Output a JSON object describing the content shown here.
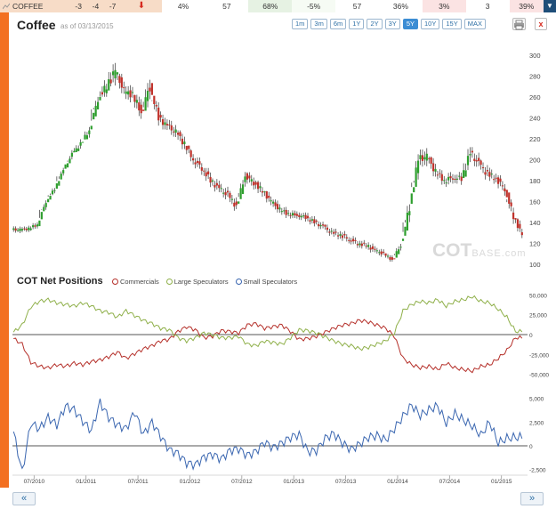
{
  "top_row": {
    "name": "COFFEE",
    "values": [
      "-3",
      "-4",
      "-7"
    ],
    "metrics": [
      "4%",
      "57",
      "68%",
      "-5%",
      "57",
      "36%",
      "3%",
      "3",
      "39%"
    ]
  },
  "header": {
    "title": "Coffee",
    "as_of": "as of 03/13/2015",
    "ranges": [
      "1m",
      "3m",
      "6m",
      "1Y",
      "2Y",
      "3Y",
      "5Y",
      "10Y",
      "15Y",
      "MAX"
    ],
    "active_range": "5Y",
    "close_label": "x"
  },
  "watermark": {
    "main": "COT",
    "sub": "BASE",
    "suffix": ".com"
  },
  "cot": {
    "title": "COT Net Positions",
    "legend": [
      {
        "name": "Commercials",
        "color": "#b5302a"
      },
      {
        "name": "Large Speculators",
        "color": "#8fb04a"
      },
      {
        "name": "Small Speculators",
        "color": "#3a66b0"
      }
    ]
  },
  "nav": {
    "prev": "«",
    "next": "»"
  },
  "chart_data": [
    {
      "type": "candlestick",
      "ylim": [
        100,
        310
      ],
      "yticks": [
        "100",
        "120",
        "140",
        "160",
        "180",
        "200",
        "220",
        "240",
        "260",
        "280",
        "300"
      ],
      "up_color": "#2e9e2e",
      "down_color": "#c0322b",
      "x": [
        "2010-05",
        "2010-06",
        "2010-07",
        "2010-08",
        "2010-09",
        "2010-10",
        "2010-11",
        "2010-12",
        "2011-01",
        "2011-02",
        "2011-03",
        "2011-04",
        "2011-05",
        "2011-06",
        "2011-07",
        "2011-08",
        "2011-09",
        "2011-10",
        "2011-11",
        "2011-12",
        "2012-01",
        "2012-02",
        "2012-03",
        "2012-04",
        "2012-05",
        "2012-06",
        "2012-07",
        "2012-08",
        "2012-09",
        "2012-10",
        "2012-11",
        "2012-12",
        "2013-01",
        "2013-02",
        "2013-03",
        "2013-04",
        "2013-05",
        "2013-06",
        "2013-07",
        "2013-08",
        "2013-09",
        "2013-10",
        "2013-11",
        "2013-12",
        "2014-01",
        "2014-02",
        "2014-03",
        "2014-04",
        "2014-05",
        "2014-06",
        "2014-07",
        "2014-08",
        "2014-09",
        "2014-10",
        "2014-11",
        "2014-12",
        "2015-01",
        "2015-02",
        "2015-03"
      ],
      "close": [
        133,
        134,
        138,
        160,
        172,
        190,
        205,
        215,
        228,
        258,
        270,
        285,
        265,
        262,
        245,
        270,
        240,
        232,
        226,
        215,
        200,
        192,
        180,
        172,
        166,
        155,
        185,
        178,
        170,
        160,
        152,
        148,
        147,
        145,
        140,
        136,
        130,
        128,
        124,
        120,
        118,
        113,
        110,
        104,
        118,
        155,
        200,
        203,
        188,
        180,
        183,
        182,
        206,
        196,
        186,
        182,
        172,
        146,
        128
      ],
      "high": [
        138,
        139,
        143,
        166,
        178,
        196,
        212,
        224,
        238,
        275,
        290,
        308,
        282,
        275,
        262,
        292,
        256,
        246,
        238,
        228,
        210,
        202,
        192,
        182,
        178,
        170,
        192,
        188,
        180,
        170,
        162,
        156,
        154,
        152,
        150,
        143,
        138,
        136,
        132,
        127,
        125,
        121,
        116,
        110,
        126,
        176,
        212,
        215,
        203,
        193,
        196,
        194,
        226,
        212,
        200,
        194,
        185,
        162,
        144
      ],
      "low": [
        127,
        129,
        132,
        152,
        166,
        184,
        198,
        208,
        220,
        248,
        260,
        270,
        252,
        248,
        232,
        250,
        228,
        222,
        214,
        202,
        188,
        180,
        168,
        160,
        156,
        148,
        168,
        166,
        158,
        150,
        144,
        140,
        140,
        138,
        134,
        128,
        122,
        120,
        116,
        112,
        111,
        106,
        103,
        100,
        110,
        140,
        178,
        185,
        176,
        172,
        174,
        173,
        190,
        184,
        174,
        172,
        162,
        136,
        125
      ]
    },
    {
      "type": "line",
      "ylim": [
        -55000,
        55000
      ],
      "yticks": [
        "50,000",
        "25,000",
        "0",
        "-25,000",
        "-50,000"
      ],
      "x": [
        "2010-05",
        "2010-06",
        "2010-07",
        "2010-08",
        "2010-09",
        "2010-10",
        "2010-11",
        "2010-12",
        "2011-01",
        "2011-02",
        "2011-03",
        "2011-04",
        "2011-05",
        "2011-06",
        "2011-07",
        "2011-08",
        "2011-09",
        "2011-10",
        "2011-11",
        "2011-12",
        "2012-01",
        "2012-02",
        "2012-03",
        "2012-04",
        "2012-05",
        "2012-06",
        "2012-07",
        "2012-08",
        "2012-09",
        "2012-10",
        "2012-11",
        "2012-12",
        "2013-01",
        "2013-02",
        "2013-03",
        "2013-04",
        "2013-05",
        "2013-06",
        "2013-07",
        "2013-08",
        "2013-09",
        "2013-10",
        "2013-11",
        "2013-12",
        "2014-01",
        "2014-02",
        "2014-03",
        "2014-04",
        "2014-05",
        "2014-06",
        "2014-07",
        "2014-08",
        "2014-09",
        "2014-10",
        "2014-11",
        "2014-12",
        "2015-01",
        "2015-02",
        "2015-03"
      ],
      "series": [
        {
          "name": "Commercials",
          "color": "#b5302a",
          "values": [
            -5000,
            -12000,
            -35000,
            -40000,
            -42000,
            -38000,
            -40000,
            -36000,
            -38000,
            -34000,
            -32000,
            -28000,
            -22000,
            -30000,
            -24000,
            -18000,
            -14000,
            -8000,
            -6000,
            4000,
            10000,
            6000,
            -4000,
            -2000,
            5000,
            4000,
            2000,
            12000,
            14000,
            8000,
            10000,
            12000,
            4000,
            -6000,
            -5000,
            -2000,
            3000,
            8000,
            12000,
            14000,
            18000,
            16000,
            12000,
            8000,
            -2000,
            -30000,
            -38000,
            -42000,
            -40000,
            -44000,
            -36000,
            -42000,
            -44000,
            -46000,
            -40000,
            -38000,
            -30000,
            -20000,
            -4000
          ]
        },
        {
          "name": "Large Speculators",
          "color": "#8fb04a",
          "values": [
            3000,
            12000,
            35000,
            42000,
            44000,
            40000,
            38000,
            36000,
            40000,
            36000,
            30000,
            28000,
            22000,
            30000,
            24000,
            18000,
            14000,
            8000,
            6000,
            -4000,
            -8000,
            -4000,
            2000,
            0,
            -4000,
            -4000,
            -2000,
            -12000,
            -14000,
            -8000,
            -10000,
            -12000,
            -4000,
            6000,
            5000,
            2000,
            -3000,
            -8000,
            -12000,
            -14000,
            -18000,
            -16000,
            -12000,
            -8000,
            2000,
            30000,
            38000,
            42000,
            40000,
            44000,
            36000,
            42000,
            44000,
            48000,
            42000,
            40000,
            32000,
            22000,
            4000
          ]
        },
        {
          "name": "Small Speculators",
          "color": "#3a66b0",
          "values": [
            1500,
            -2800,
            2400,
            1800,
            3000,
            2200,
            4200,
            3800,
            2600,
            1600,
            4600,
            3000,
            2200,
            1800,
            3600,
            1200,
            2500,
            1000,
            -400,
            -800,
            -1800,
            -2000,
            -1200,
            -900,
            -1400,
            -500,
            -300,
            -1000,
            -600,
            400,
            -200,
            300,
            900,
            1200,
            -600,
            -500,
            800,
            1300,
            300,
            -400,
            200,
            900,
            1100,
            600,
            1800,
            3100,
            4300,
            3200,
            3800,
            4200,
            2400,
            3400,
            2700,
            2100,
            1100,
            2500,
            300,
            800,
            900
          ]
        }
      ]
    }
  ],
  "x_ticks": [
    "07/2010",
    "01/2011",
    "07/2011",
    "01/2012",
    "07/2012",
    "01/2013",
    "07/2013",
    "01/2014",
    "07/2014",
    "01/2015"
  ],
  "small_spec_axis": {
    "ylim": [
      -3000,
      6000
    ],
    "yticks": [
      "5,000",
      "2,500",
      "0",
      "-2,500"
    ]
  }
}
